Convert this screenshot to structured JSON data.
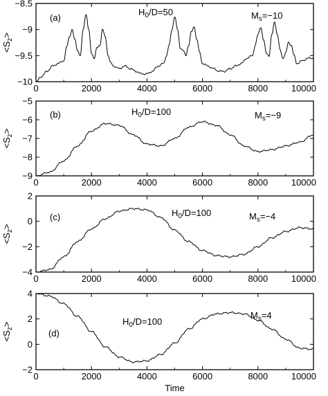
{
  "chart_data": [
    {
      "type": "line",
      "panel": "(a)",
      "annotations": [
        "H0/D=50",
        "Ms=-10"
      ],
      "ylabel": "<Sz>",
      "xlabel": "",
      "xlim": [
        0,
        10000
      ],
      "ylim": [
        -10,
        -8.5
      ],
      "xticks": [
        0,
        2000,
        4000,
        6000,
        8000,
        10000
      ],
      "yticks": [
        -10,
        -9.5,
        -9,
        -8.5
      ],
      "x": [
        0,
        200,
        400,
        600,
        800,
        1000,
        1100,
        1200,
        1300,
        1400,
        1500,
        1600,
        1700,
        1800,
        1900,
        2000,
        2100,
        2200,
        2300,
        2400,
        2500,
        2600,
        2700,
        2800,
        3000,
        3200,
        3400,
        3600,
        3800,
        4000,
        4200,
        4400,
        4600,
        4700,
        4800,
        4900,
        5000,
        5100,
        5200,
        5300,
        5400,
        5500,
        5600,
        5700,
        5800,
        5900,
        6000,
        6200,
        6400,
        6600,
        6800,
        7000,
        7200,
        7400,
        7600,
        7800,
        7900,
        8000,
        8100,
        8200,
        8300,
        8400,
        8500,
        8600,
        8700,
        8800,
        8900,
        9000,
        9100,
        9200,
        9300,
        9400,
        9600,
        9800,
        10000
      ],
      "y": [
        -10.0,
        -9.9,
        -9.8,
        -9.7,
        -9.65,
        -9.6,
        -9.35,
        -9.15,
        -9.0,
        -9.2,
        -9.4,
        -9.5,
        -9.0,
        -8.7,
        -9.0,
        -9.45,
        -9.55,
        -9.35,
        -9.3,
        -9.0,
        -9.15,
        -9.5,
        -9.65,
        -9.7,
        -9.75,
        -9.7,
        -9.75,
        -9.8,
        -9.85,
        -9.85,
        -9.8,
        -9.7,
        -9.65,
        -9.5,
        -9.3,
        -9.0,
        -8.75,
        -9.0,
        -9.35,
        -9.4,
        -9.5,
        -9.3,
        -9.05,
        -8.95,
        -9.2,
        -9.45,
        -9.65,
        -9.7,
        -9.75,
        -9.8,
        -9.8,
        -9.75,
        -9.7,
        -9.65,
        -9.55,
        -9.5,
        -9.3,
        -9.1,
        -8.95,
        -9.2,
        -9.45,
        -9.5,
        -9.1,
        -8.85,
        -9.1,
        -9.4,
        -9.55,
        -9.45,
        -9.25,
        -9.3,
        -9.5,
        -9.65,
        -9.6,
        -9.55,
        -9.55
      ]
    },
    {
      "type": "line",
      "panel": "(b)",
      "annotations": [
        "H0/D=100",
        "Ms=-9"
      ],
      "ylabel": "<Sz>",
      "xlabel": "",
      "xlim": [
        0,
        10000
      ],
      "ylim": [
        -9,
        -5
      ],
      "xticks": [
        0,
        2000,
        4000,
        6000,
        8000,
        10000
      ],
      "yticks": [
        -9,
        -8,
        -7,
        -6,
        -5
      ],
      "x": [
        0,
        500,
        1000,
        1500,
        2000,
        2500,
        3000,
        3500,
        4000,
        4500,
        5000,
        5500,
        6000,
        6500,
        7000,
        7500,
        8000,
        8500,
        9000,
        9500,
        10000
      ],
      "y": [
        -9.0,
        -8.8,
        -8.2,
        -7.4,
        -6.6,
        -6.2,
        -6.3,
        -6.8,
        -7.3,
        -7.4,
        -7.0,
        -6.4,
        -6.1,
        -6.3,
        -6.8,
        -7.4,
        -7.7,
        -7.6,
        -7.4,
        -7.2,
        -6.8
      ]
    },
    {
      "type": "line",
      "panel": "(c)",
      "annotations": [
        "H0/D=100",
        "Ms=-4"
      ],
      "ylabel": "<Sz>",
      "xlabel": "",
      "xlim": [
        0,
        10000
      ],
      "ylim": [
        -4,
        2
      ],
      "xticks": [
        0,
        2000,
        4000,
        6000,
        8000,
        10000
      ],
      "yticks": [
        -4,
        -2,
        0,
        2
      ],
      "x": [
        0,
        500,
        1000,
        1500,
        2000,
        2500,
        3000,
        3500,
        4000,
        4500,
        5000,
        5500,
        6000,
        6500,
        7000,
        7500,
        8000,
        8500,
        9000,
        9500,
        10000
      ],
      "y": [
        -4.0,
        -3.8,
        -2.8,
        -1.6,
        -0.6,
        0.2,
        0.8,
        1.0,
        0.9,
        0.3,
        -0.7,
        -1.6,
        -2.3,
        -2.7,
        -2.8,
        -2.6,
        -2.0,
        -1.3,
        -0.8,
        -0.5,
        -0.6
      ]
    },
    {
      "type": "line",
      "panel": "(d)",
      "annotations": [
        "H0/D=100",
        "Ms=4"
      ],
      "ylabel": "<Sz>",
      "xlabel": "Time",
      "xlim": [
        0,
        10000
      ],
      "ylim": [
        -2,
        4
      ],
      "xticks": [
        0,
        2000,
        4000,
        6000,
        8000,
        10000
      ],
      "yticks": [
        -2,
        0,
        2,
        4
      ],
      "x": [
        0,
        500,
        1000,
        1500,
        2000,
        2500,
        3000,
        3500,
        4000,
        4500,
        5000,
        5500,
        6000,
        6500,
        7000,
        7500,
        8000,
        8500,
        9000,
        9500,
        10000
      ],
      "y": [
        4.0,
        3.8,
        3.2,
        2.2,
        1.0,
        -0.2,
        -1.0,
        -1.4,
        -1.3,
        -0.8,
        0.1,
        1.2,
        2.0,
        2.4,
        2.5,
        2.4,
        1.9,
        1.2,
        0.4,
        -0.3,
        -0.4
      ]
    }
  ]
}
